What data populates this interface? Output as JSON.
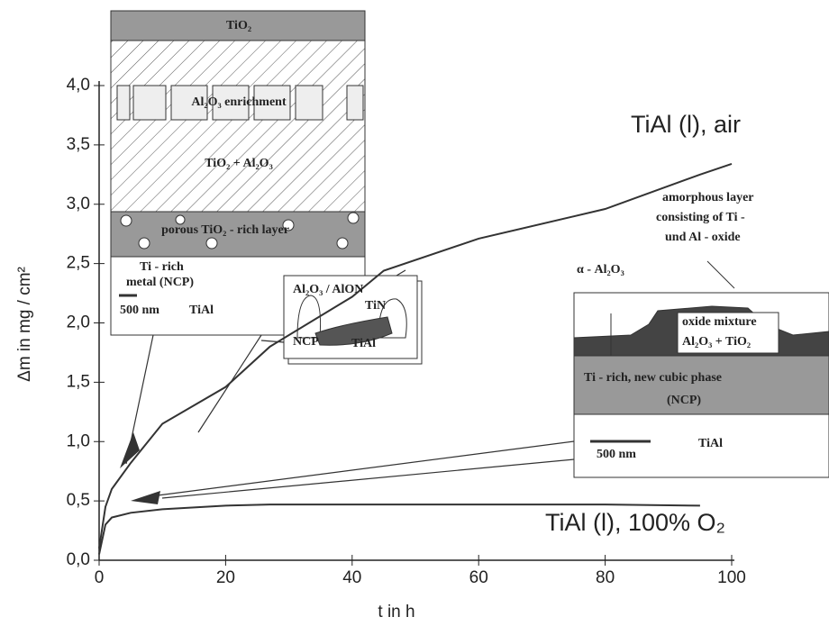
{
  "chart_data": {
    "type": "line",
    "x_label": "t in h",
    "y_label": "Δm in mg / cm²",
    "x": [
      0,
      1,
      2,
      5,
      10,
      20,
      27,
      40,
      45,
      60,
      80,
      95,
      100
    ],
    "series": [
      {
        "name": "TiAl (l), air",
        "color": "#333333",
        "values": [
          0.1,
          0.45,
          0.6,
          0.82,
          1.15,
          1.46,
          1.8,
          2.22,
          2.44,
          2.71,
          2.96,
          3.25,
          3.34
        ]
      },
      {
        "name": "TiAl (l), 100% O₂",
        "color": "#333333",
        "values": [
          0.05,
          0.3,
          0.36,
          0.4,
          0.43,
          0.46,
          0.47,
          0.47,
          0.47,
          0.47,
          0.47,
          0.46,
          null
        ]
      }
    ],
    "xlim": [
      0,
      100
    ],
    "xticks": [
      0,
      20,
      40,
      60,
      80,
      100
    ],
    "ylim": [
      0,
      4
    ],
    "yticks": [
      {
        "value": 0,
        "label": "0,0"
      },
      {
        "value": 0.5,
        "label": "0,5"
      },
      {
        "value": 1,
        "label": "1,0"
      },
      {
        "value": 1.5,
        "label": "1,5"
      },
      {
        "value": 2,
        "label": "2,0"
      },
      {
        "value": 2.5,
        "label": "2,5"
      },
      {
        "value": 3,
        "label": "3,0"
      },
      {
        "value": 3.5,
        "label": "3,5"
      },
      {
        "value": 4,
        "label": "4,0"
      }
    ],
    "annotations": [
      "TiO₂",
      "Al₂O₃ enrichment",
      "TiO₂ + Al₂O₃",
      "porous TiO₂ - rich layer",
      "Ti - rich",
      "metal (NCP)",
      "500 nm",
      "TiAl",
      "Al₂O₃ / AlON",
      "TiN",
      "NCP",
      "TiAl",
      "amorphous layer",
      "consisting of Ti -",
      "und Al - oxide",
      "α - Al₂O₃",
      "oxide mixture",
      "Al₂O₃ + TiO₂",
      "Ti - rich, new cubic phase",
      "(NCP)",
      "500 nm",
      "TiAl"
    ]
  }
}
